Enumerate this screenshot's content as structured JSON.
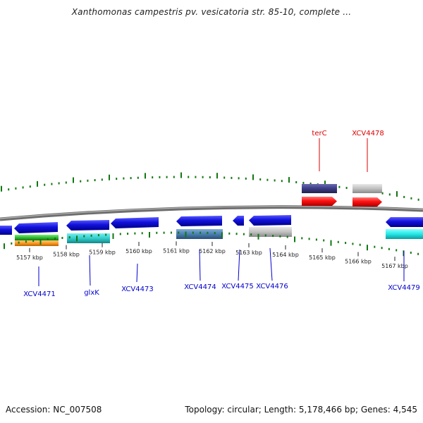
{
  "title": "Xanthomonas campestris pv. vesicatoria str. 85-10, complete ...",
  "footer": {
    "accession": "Accession: NC_007508",
    "summary": "Topology: circular; Length: 5,178,466 bp; Genes: 4,545"
  },
  "ruler_labels": [
    "5157 kbp",
    "5158 kbp",
    "5159 kbp",
    "5160 kbp",
    "5161 kbp",
    "5162 kbp",
    "5163 kbp",
    "5164 kbp",
    "5165 kbp",
    "5166 kbp",
    "5167 kbp"
  ],
  "genes_top": [
    {
      "name": "terC",
      "color": "#dd0000"
    },
    {
      "name": "XCV4478",
      "color": "#dd0000"
    }
  ],
  "genes_bottom": [
    {
      "name": "XCV4471",
      "color": "#0000cc"
    },
    {
      "name": "glxK",
      "color": "#0000cc"
    },
    {
      "name": "XCV4473",
      "color": "#0000cc"
    },
    {
      "name": "XCV4474",
      "color": "#0000cc"
    },
    {
      "name": "XCV4475",
      "color": "#0000cc"
    },
    {
      "name": "XCV4476",
      "color": "#0000cc"
    },
    {
      "name": "XCV4479",
      "color": "#0000cc"
    }
  ],
  "colors": {
    "backbone": "#808080",
    "gene_blue": "#1111dd",
    "gene_red": "#ff1111",
    "feature_navy": "#3b3b86",
    "feature_grey": "#bdbdbd",
    "feature_steelblue": "#4a7fb0",
    "feature_cyan": "#22dddd",
    "feature_teal": "#33cccc",
    "feature_green": "#33bb33",
    "feature_orange": "#ff9922",
    "tick_green": "#117711",
    "tick_black": "#222222"
  }
}
